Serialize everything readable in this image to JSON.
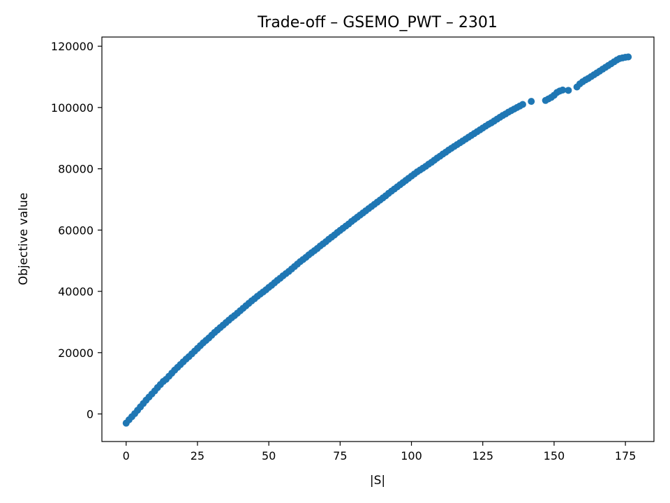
{
  "chart_data": {
    "type": "scatter",
    "title": "Trade-off – GSEMO_PWT – 2301",
    "xlabel": "|S|",
    "ylabel": "Objective value",
    "xlim": [
      -8.5,
      185
    ],
    "ylim": [
      -9000,
      123000
    ],
    "xticks": [
      0,
      25,
      50,
      75,
      100,
      125,
      150,
      175
    ],
    "yticks": [
      0,
      20000,
      40000,
      60000,
      80000,
      100000,
      120000
    ],
    "grid": false,
    "legend": "none",
    "marker_color": "#1f77b4",
    "series": [
      {
        "x": [
          0,
          1,
          2,
          3,
          4,
          5,
          6,
          7,
          8,
          9,
          10,
          11,
          12,
          13,
          14,
          15,
          16,
          17,
          18,
          19,
          20,
          21,
          22,
          23,
          24,
          25,
          26,
          27,
          28,
          29,
          30,
          31,
          32,
          33,
          34,
          35,
          36,
          37,
          38,
          39,
          40,
          41,
          42,
          43,
          44,
          45,
          46,
          47,
          48,
          49,
          50,
          51,
          52,
          53,
          54,
          55,
          56,
          57,
          58,
          59,
          60,
          61,
          62,
          63,
          64,
          65,
          66,
          67,
          68,
          69,
          70,
          71,
          72,
          73,
          74,
          75,
          76,
          77,
          78,
          79,
          80,
          81,
          82,
          83,
          84,
          85,
          86,
          87,
          88,
          89,
          90,
          91,
          92,
          93,
          94,
          95,
          96,
          97,
          98,
          99,
          100,
          101,
          102,
          103,
          104,
          105,
          106,
          107,
          108,
          109,
          110,
          111,
          112,
          113,
          114,
          115,
          116,
          117,
          118,
          119,
          120,
          121,
          122,
          123,
          124,
          125,
          126,
          127,
          128,
          129,
          130,
          131,
          132,
          133,
          134,
          135,
          136,
          137,
          138,
          139,
          142,
          147,
          148,
          149,
          150,
          151,
          152,
          153,
          155,
          158,
          159,
          160,
          161,
          162,
          163,
          164,
          165,
          166,
          167,
          168,
          169,
          170,
          171,
          172,
          173,
          174,
          175,
          176
        ],
        "y": [
          -3000,
          -1900,
          -900,
          100,
          1200,
          2300,
          3400,
          4500,
          5500,
          6500,
          7500,
          8600,
          9600,
          10600,
          11300,
          12300,
          13300,
          14300,
          15200,
          16100,
          17000,
          17900,
          18700,
          19600,
          20500,
          21400,
          22300,
          23200,
          24000,
          24800,
          25700,
          26600,
          27400,
          28200,
          29000,
          29800,
          30600,
          31400,
          32100,
          32900,
          33700,
          34500,
          35300,
          36100,
          36900,
          37600,
          38400,
          39100,
          39800,
          40500,
          41300,
          42000,
          42800,
          43600,
          44300,
          45100,
          45800,
          46500,
          47300,
          48100,
          48900,
          49700,
          50400,
          51100,
          51900,
          52600,
          53300,
          54000,
          54800,
          55500,
          56200,
          57000,
          57700,
          58400,
          59200,
          59900,
          60600,
          61300,
          62000,
          62800,
          63500,
          64200,
          64900,
          65600,
          66300,
          67000,
          67700,
          68400,
          69100,
          69800,
          70500,
          71200,
          72000,
          72700,
          73400,
          74100,
          74800,
          75500,
          76200,
          76900,
          77600,
          78300,
          79000,
          79600,
          80200,
          80800,
          81500,
          82100,
          82800,
          83500,
          84100,
          84800,
          85400,
          86100,
          86700,
          87300,
          87900,
          88500,
          89100,
          89700,
          90300,
          90900,
          91500,
          92100,
          92700,
          93300,
          93900,
          94500,
          95000,
          95600,
          96200,
          96800,
          97400,
          97900,
          98500,
          99000,
          99500,
          100000,
          100500,
          101000,
          102000,
          102300,
          102800,
          103300,
          104000,
          104900,
          105400,
          105700,
          105600,
          106700,
          107700,
          108400,
          109000,
          109500,
          110100,
          110700,
          111300,
          111900,
          112500,
          113100,
          113700,
          114300,
          114900,
          115500,
          116000,
          116200,
          116400,
          116500
        ]
      }
    ]
  }
}
